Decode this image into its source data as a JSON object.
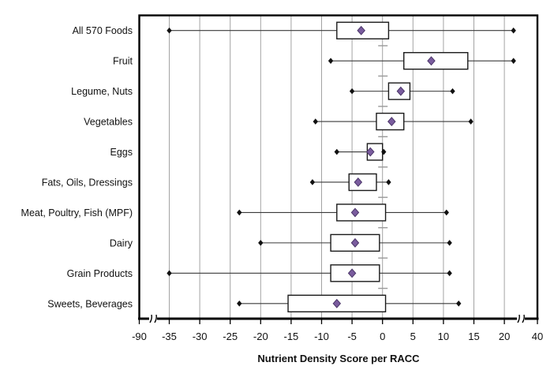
{
  "chart_data": {
    "type": "box",
    "orientation": "horizontal",
    "title": "",
    "xlabel": "Nutrient Density Score per RACC",
    "ylabel": "",
    "x_tick_labels": [
      "-90",
      "-35",
      "-30",
      "-25",
      "-20",
      "-15",
      "-10",
      "-5",
      "0",
      "5",
      "10",
      "15",
      "20",
      "40"
    ],
    "x_tick_values": [
      -90,
      -35,
      -30,
      -25,
      -20,
      -15,
      -10,
      -5,
      0,
      5,
      10,
      15,
      20,
      40
    ],
    "xlim": [
      -90,
      40
    ],
    "axis_breaks": [
      {
        "between": [
          -90,
          -35
        ]
      },
      {
        "between": [
          20,
          40
        ]
      }
    ],
    "grid": "vertical-major",
    "legend": "none",
    "categories": [
      "All 570 Foods",
      "Fruit",
      "Legume, Nuts",
      "Vegetables",
      "Eggs",
      "Fats, Oils, Dressings",
      "Meat, Poultry, Fish (MPF)",
      "Dairy",
      "Grain Products",
      "Sweets, Beverages"
    ],
    "boxes": [
      {
        "category": "All 570 Foods",
        "whisker_low": -35,
        "q1": -7.5,
        "median": -3.5,
        "q3": 1,
        "whisker_high": 21.5
      },
      {
        "category": "Fruit",
        "whisker_low": -8.5,
        "q1": 3.5,
        "median": 8,
        "q3": 14,
        "whisker_high": 21.5
      },
      {
        "category": "Legume, Nuts",
        "whisker_low": -5,
        "q1": 1,
        "median": 3,
        "q3": 4.5,
        "whisker_high": 11.5
      },
      {
        "category": "Vegetables",
        "whisker_low": -11,
        "q1": -1,
        "median": 1.5,
        "q3": 3.5,
        "whisker_high": 14.5
      },
      {
        "category": "Eggs",
        "whisker_low": -7.5,
        "q1": -2.5,
        "median": -2,
        "q3": 0,
        "whisker_high": 0.2
      },
      {
        "category": "Fats, Oils, Dressings",
        "whisker_low": -11.5,
        "q1": -5.5,
        "median": -4,
        "q3": -1,
        "whisker_high": 1
      },
      {
        "category": "Meat, Poultry, Fish (MPF)",
        "whisker_low": -23.5,
        "q1": -7.5,
        "median": -4.5,
        "q3": 0.5,
        "whisker_high": 10.5
      },
      {
        "category": "Dairy",
        "whisker_low": -20,
        "q1": -8.5,
        "median": -4.5,
        "q3": -0.5,
        "whisker_high": 11
      },
      {
        "category": "Grain Products",
        "whisker_low": -35,
        "q1": -8.5,
        "median": -5,
        "q3": -0.5,
        "whisker_high": 11
      },
      {
        "category": "Sweets, Beverages",
        "whisker_low": -23.5,
        "q1": -15.5,
        "median": -7.5,
        "q3": 0.5,
        "whisker_high": 12.5
      }
    ],
    "colors": {
      "median_diamond_fill": "#7A5C9E",
      "median_diamond_stroke": "#4A3568",
      "whisker_cap": "#111111",
      "box_fill": "#FFFFFF",
      "box_stroke": "#1A1A1A",
      "gridline": "#A3A3A3",
      "axis": "#000000"
    }
  }
}
